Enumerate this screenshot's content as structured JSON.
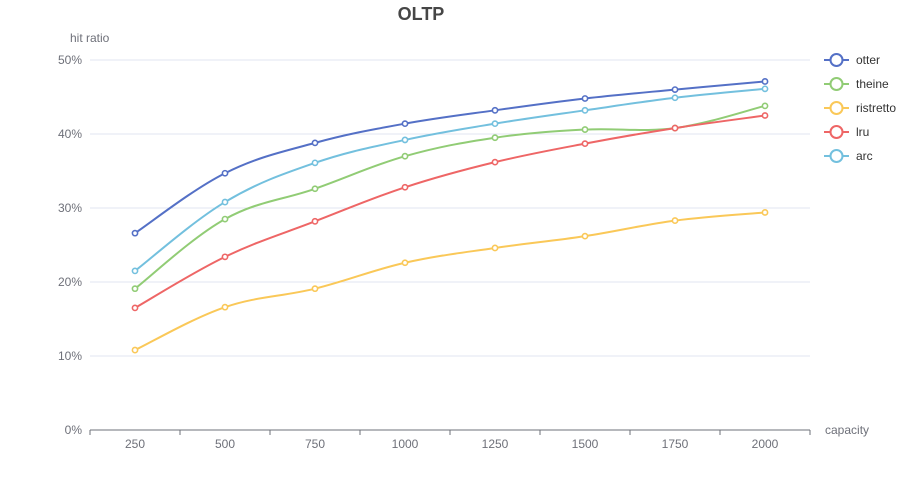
{
  "chart_data": {
    "type": "line",
    "title": "OLTP",
    "xlabel": "capacity",
    "ylabel": "hit ratio",
    "categories": [
      "250",
      "500",
      "750",
      "1000",
      "1250",
      "1500",
      "1750",
      "2000"
    ],
    "ylim": [
      0,
      50
    ],
    "yticks": [
      "0%",
      "10%",
      "20%",
      "30%",
      "40%",
      "50%"
    ],
    "grid": true,
    "legend_position": "right",
    "smooth": true,
    "series": [
      {
        "name": "otter",
        "color": "#5470c6",
        "values": [
          26.6,
          34.7,
          38.8,
          41.4,
          43.2,
          44.8,
          46.0,
          47.1
        ]
      },
      {
        "name": "theine",
        "color": "#91cc75",
        "values": [
          19.1,
          28.5,
          32.6,
          37.0,
          39.5,
          40.6,
          40.8,
          43.8
        ]
      },
      {
        "name": "ristretto",
        "color": "#fac858",
        "values": [
          10.8,
          16.6,
          19.1,
          22.6,
          24.6,
          26.2,
          28.3,
          29.4
        ]
      },
      {
        "name": "lru",
        "color": "#ee6666",
        "values": [
          16.5,
          23.4,
          28.2,
          32.8,
          36.2,
          38.7,
          40.8,
          42.5
        ]
      },
      {
        "name": "arc",
        "color": "#73c0de",
        "values": [
          21.5,
          30.8,
          36.1,
          39.2,
          41.4,
          43.2,
          44.9,
          46.1
        ]
      }
    ]
  }
}
